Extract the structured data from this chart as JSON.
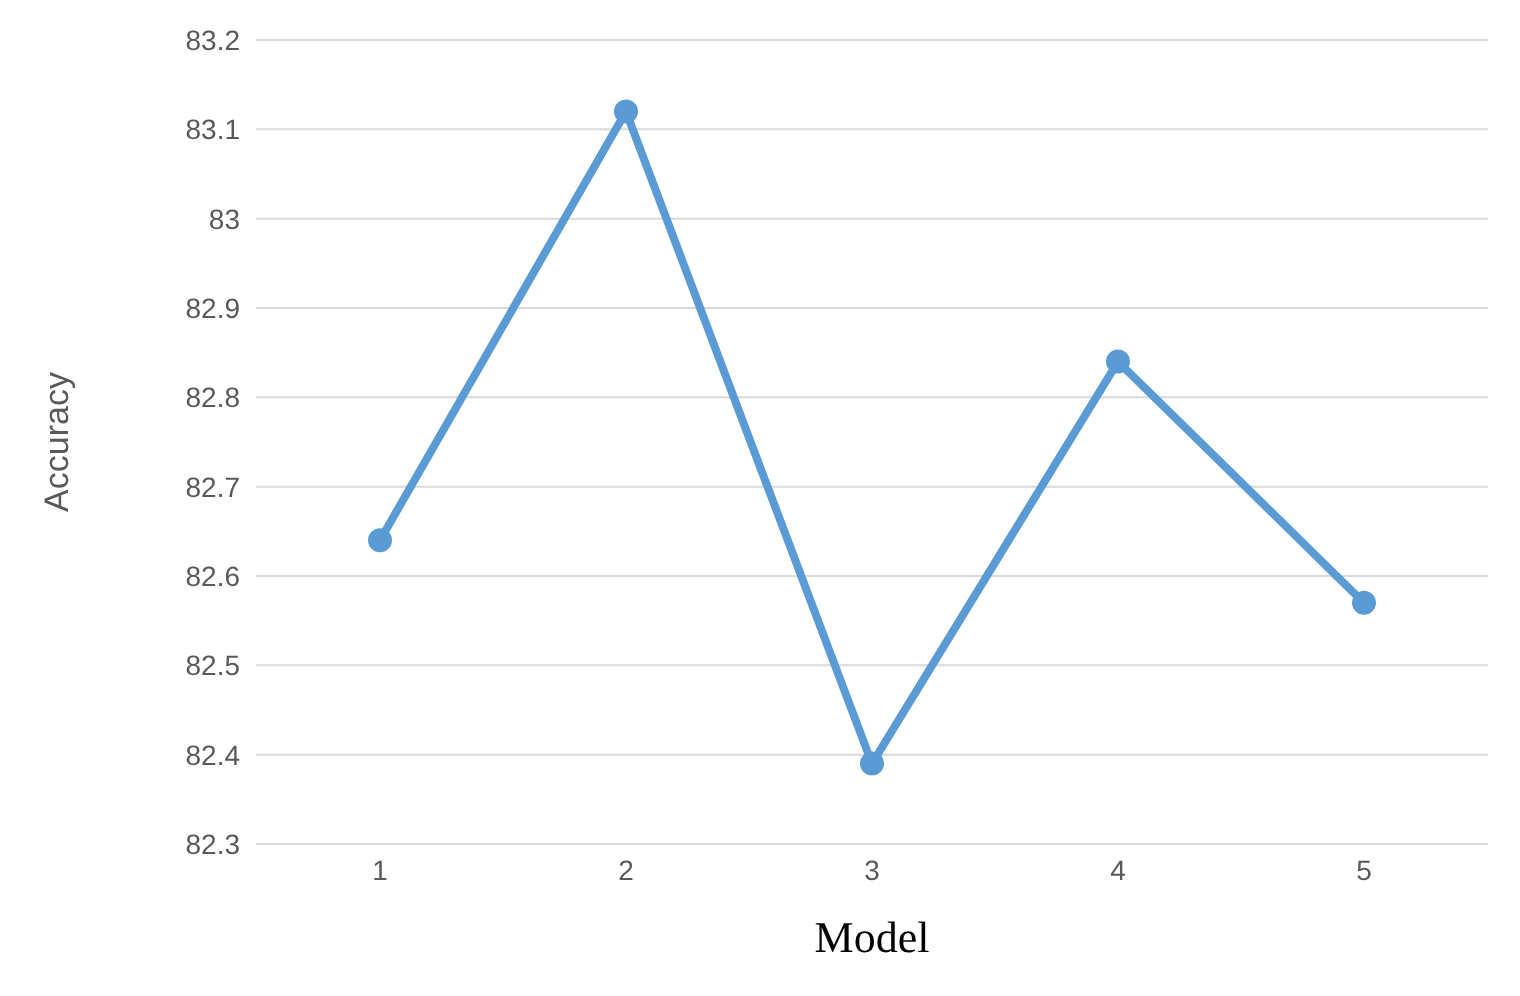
{
  "chart_data": {
    "type": "line",
    "xlabel": "Model",
    "ylabel": "Accuracy",
    "categories": [
      "1",
      "2",
      "3",
      "4",
      "5"
    ],
    "series": [
      {
        "color": "#5b9bd5",
        "values": [
          82.64,
          83.12,
          82.39,
          82.84,
          82.57
        ]
      }
    ],
    "ylim": [
      82.3,
      83.2
    ],
    "yticks": [
      82.3,
      82.4,
      82.5,
      82.6,
      82.7,
      82.8,
      82.9,
      83,
      83.1,
      83.2
    ],
    "grid": "y",
    "marker": "circle",
    "line_style": "solid"
  }
}
